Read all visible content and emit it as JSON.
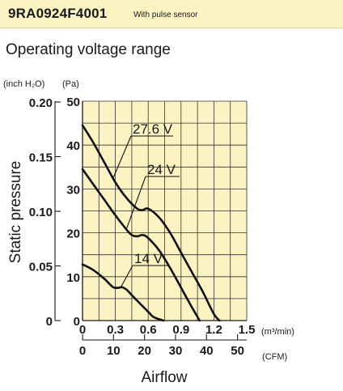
{
  "header": {
    "model": "9RA0924F4001",
    "note": "With pulse sensor",
    "background": "#fbf3c2"
  },
  "section_title": "Operating voltage range",
  "chart_data": {
    "type": "line",
    "title": "",
    "plot_background": "#fbf3c2",
    "grid": true,
    "xlabel": "Airflow",
    "ylabel": "Static pressure",
    "x_unit_primary": "(m³/min)",
    "x_unit_secondary": "(CFM)",
    "y_unit_left": "(inch H₂O)",
    "y_unit_right": "(Pa)",
    "xlim": [
      0,
      1.5
    ],
    "ylim": [
      0,
      50
    ],
    "x_ticks": [
      "0",
      "0.3",
      "0.6",
      "0.9",
      "1.2",
      "1.5"
    ],
    "x_ticks_cfm": [
      "0",
      "10",
      "20",
      "30",
      "40",
      "50"
    ],
    "y_ticks_pa": [
      "0",
      "10",
      "20",
      "30",
      "40",
      "50"
    ],
    "y_ticks_inch": [
      "0",
      "0.05",
      "0.10",
      "0.15",
      "0.20"
    ],
    "series": [
      {
        "name": "27.6 V",
        "x": [
          0,
          0.1,
          0.2,
          0.3,
          0.4,
          0.5,
          0.55,
          0.6,
          0.7,
          0.8,
          0.9,
          1.0,
          1.1,
          1.2,
          1.25
        ],
        "y": [
          44.5,
          40.5,
          36,
          31.5,
          28,
          25.5,
          25.2,
          25.5,
          23.5,
          20,
          15.5,
          11,
          6.5,
          1.5,
          0
        ]
      },
      {
        "name": "24 V",
        "x": [
          0,
          0.1,
          0.2,
          0.3,
          0.4,
          0.45,
          0.5,
          0.55,
          0.6,
          0.7,
          0.8,
          0.9,
          1.0,
          1.07
        ],
        "y": [
          34.5,
          31,
          27.5,
          24,
          20.8,
          19.5,
          19.2,
          19.5,
          18.8,
          16,
          12,
          7.5,
          3,
          0
        ]
      },
      {
        "name": "14 V",
        "x": [
          0,
          0.1,
          0.2,
          0.28,
          0.33,
          0.36,
          0.4,
          0.45,
          0.5,
          0.6,
          0.65,
          0.74
        ],
        "y": [
          12.8,
          11.5,
          9.5,
          7.6,
          7.5,
          7.6,
          7.1,
          5.8,
          4.5,
          2,
          0.8,
          0
        ]
      }
    ],
    "annotations": [
      {
        "text": "27.6 V",
        "series": "27.6 V"
      },
      {
        "text": "24 V",
        "series": "24 V"
      },
      {
        "text": "14 V",
        "series": "14 V"
      }
    ]
  }
}
